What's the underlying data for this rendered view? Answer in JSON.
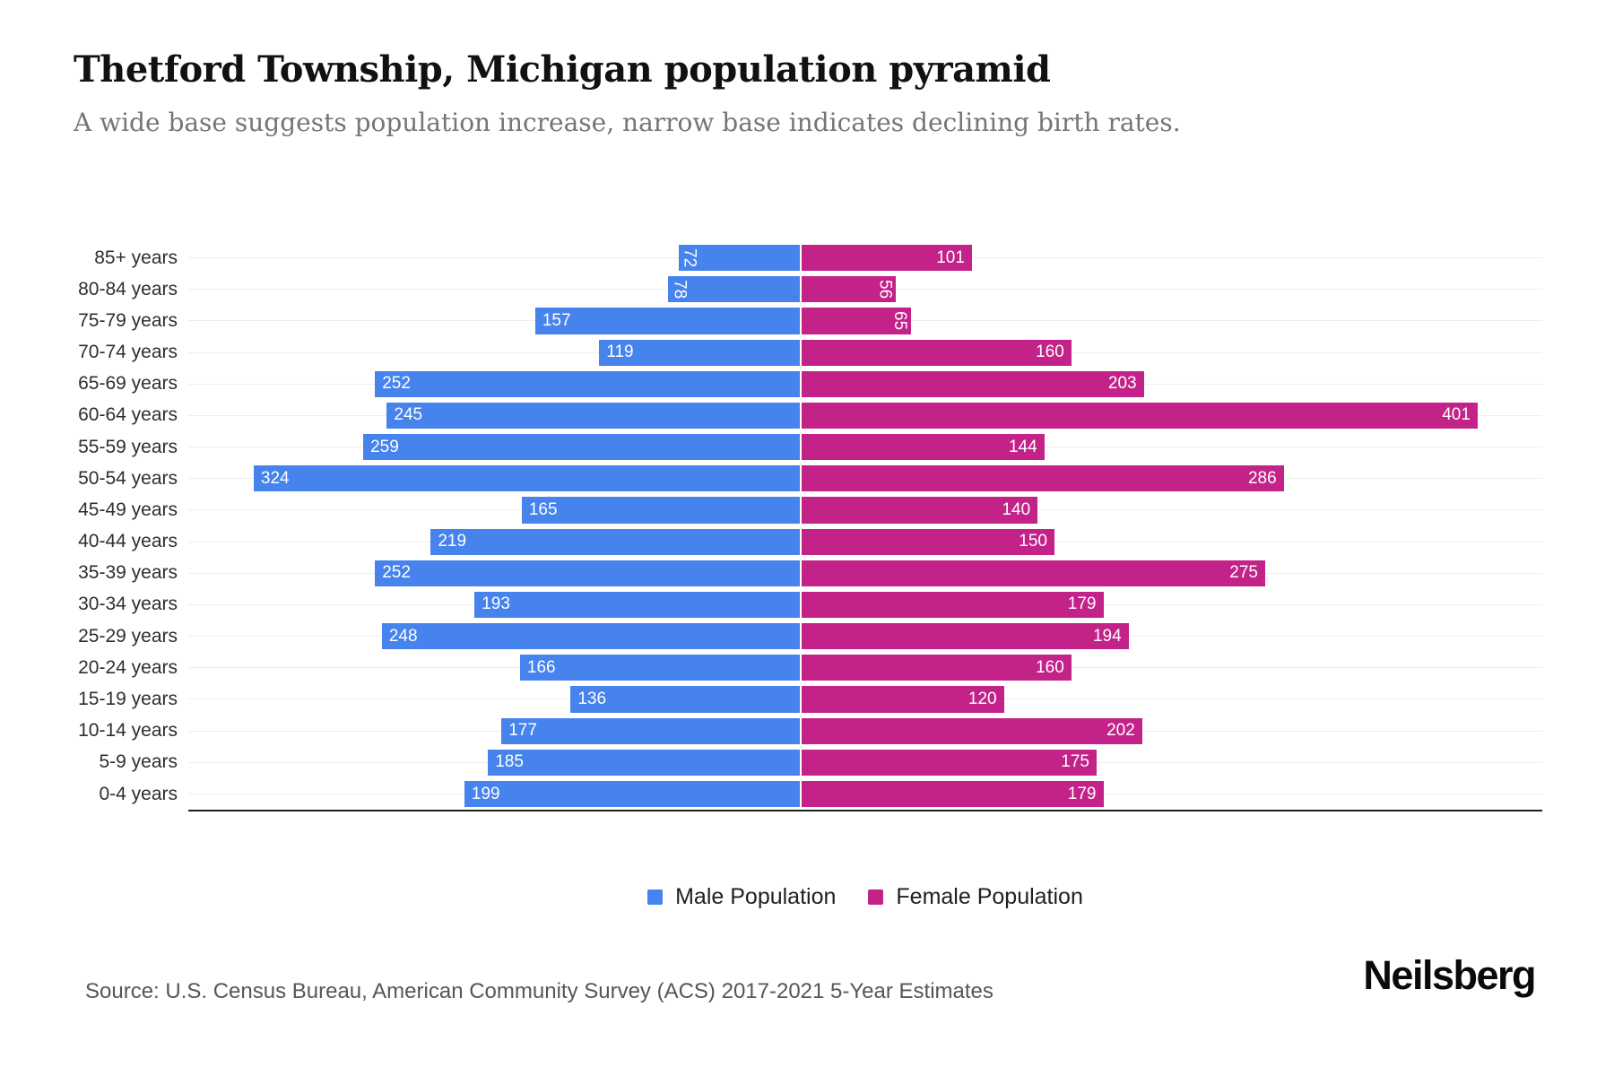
{
  "header": {
    "title": "Thetford Township, Michigan population pyramid",
    "subtitle": "A wide base suggests population increase, narrow base indicates declining birth rates."
  },
  "chart_data": {
    "type": "bar",
    "variant": "population-pyramid",
    "orientation": "horizontal",
    "grid": true,
    "legend_position": "bottom",
    "value_labels": "inside-end, rotated 90deg when value < 100",
    "categories": [
      "85+ years",
      "80-84 years",
      "75-79 years",
      "70-74 years",
      "65-69 years",
      "60-64 years",
      "55-59 years",
      "50-54 years",
      "45-49 years",
      "40-44 years",
      "35-39 years",
      "30-34 years",
      "25-29 years",
      "20-24 years",
      "15-19 years",
      "10-14 years",
      "5-9 years",
      "0-4 years"
    ],
    "series": [
      {
        "name": "Male Population",
        "color": "#4683EC",
        "values": [
          72,
          78,
          157,
          119,
          252,
          245,
          259,
          324,
          165,
          219,
          252,
          193,
          248,
          166,
          136,
          177,
          185,
          199
        ]
      },
      {
        "name": "Female Population",
        "color": "#C32289",
        "values": [
          101,
          56,
          65,
          160,
          203,
          401,
          144,
          286,
          140,
          150,
          275,
          179,
          194,
          160,
          120,
          202,
          175,
          179
        ]
      }
    ]
  },
  "legend": {
    "items": [
      {
        "label": "Male Population",
        "color": "#4683EC"
      },
      {
        "label": "Female Population",
        "color": "#C32289"
      }
    ]
  },
  "footer": {
    "source": "Source: U.S. Census Bureau, American Community Survey (ACS) 2017-2021 5-Year Estimates",
    "brand": "Neilsberg"
  },
  "colors": {
    "male": "#4683EC",
    "female": "#C32289",
    "gridline": "#ededed",
    "axis": "#1f1f1f",
    "subtitle_text": "#757575"
  }
}
